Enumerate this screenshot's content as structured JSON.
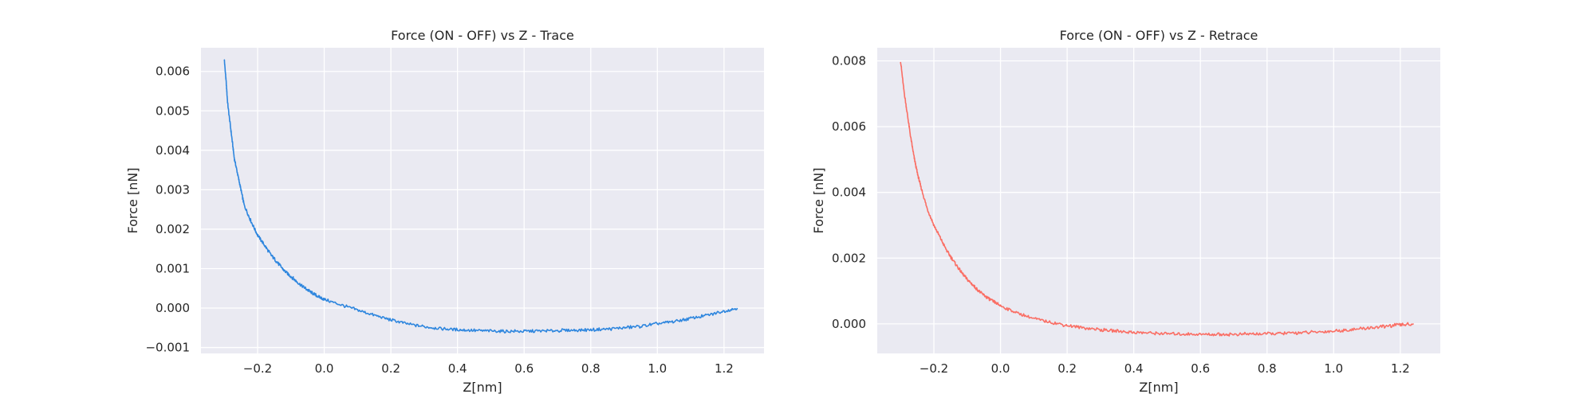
{
  "chart_data": [
    {
      "type": "line",
      "title": "Force (ON - OFF) vs Z - Trace",
      "xlabel": "Z[nm]",
      "ylabel": "Force [nN]",
      "xlim": [
        -0.37,
        1.32
      ],
      "ylim": [
        -0.00115,
        0.0066
      ],
      "xticks": [
        -0.2,
        0.0,
        0.2,
        0.4,
        0.6,
        0.8,
        1.0,
        1.2
      ],
      "xtick_labels": [
        "−0.2",
        "0.0",
        "0.2",
        "0.4",
        "0.6",
        "0.8",
        "1.0",
        "1.2"
      ],
      "yticks": [
        -0.001,
        0.0,
        0.001,
        0.002,
        0.003,
        0.004,
        0.005,
        0.006
      ],
      "ytick_labels": [
        "−0.001",
        "0.000",
        "0.001",
        "0.002",
        "0.003",
        "0.004",
        "0.005",
        "0.006"
      ],
      "grid": true,
      "series": [
        {
          "color": "#2e86de",
          "x": [
            -0.3,
            -0.295,
            -0.29,
            -0.28,
            -0.27,
            -0.26,
            -0.25,
            -0.24,
            -0.22,
            -0.2,
            -0.18,
            -0.16,
            -0.14,
            -0.12,
            -0.1,
            -0.08,
            -0.06,
            -0.04,
            -0.02,
            0.0,
            0.05,
            0.1,
            0.15,
            0.2,
            0.25,
            0.3,
            0.35,
            0.4,
            0.45,
            0.5,
            0.55,
            0.6,
            0.65,
            0.7,
            0.75,
            0.8,
            0.85,
            0.9,
            0.95,
            1.0,
            1.05,
            1.1,
            1.15,
            1.2,
            1.24
          ],
          "y": [
            0.0063,
            0.0058,
            0.0052,
            0.0045,
            0.0038,
            0.0034,
            0.003,
            0.0026,
            0.0022,
            0.00185,
            0.0016,
            0.00135,
            0.00115,
            0.00095,
            0.0008,
            0.00065,
            0.00052,
            0.0004,
            0.0003,
            0.00022,
            8e-05,
            -5e-05,
            -0.00018,
            -0.0003,
            -0.0004,
            -0.00047,
            -0.00052,
            -0.00055,
            -0.00057,
            -0.00058,
            -0.00059,
            -0.00059,
            -0.00058,
            -0.00057,
            -0.00056,
            -0.00055,
            -0.00053,
            -0.0005,
            -0.00046,
            -0.0004,
            -0.00034,
            -0.00026,
            -0.00018,
            -8e-05,
            0.0
          ]
        }
      ]
    },
    {
      "type": "line",
      "title": "Force (ON - OFF) vs Z - Retrace",
      "xlabel": "Z[nm]",
      "ylabel": "Force [nN]",
      "xlim": [
        -0.37,
        1.32
      ],
      "ylim": [
        -0.0009,
        0.0084
      ],
      "xticks": [
        -0.2,
        0.0,
        0.2,
        0.4,
        0.6,
        0.8,
        1.0,
        1.2
      ],
      "xtick_labels": [
        "−0.2",
        "0.0",
        "0.2",
        "0.4",
        "0.6",
        "0.8",
        "1.0",
        "1.2"
      ],
      "yticks": [
        0.0,
        0.002,
        0.004,
        0.006,
        0.008
      ],
      "ytick_labels": [
        "0.000",
        "0.002",
        "0.004",
        "0.006",
        "0.008"
      ],
      "grid": true,
      "series": [
        {
          "color": "#fa6e64",
          "x": [
            -0.3,
            -0.29,
            -0.28,
            -0.27,
            -0.26,
            -0.25,
            -0.24,
            -0.22,
            -0.2,
            -0.18,
            -0.16,
            -0.14,
            -0.12,
            -0.1,
            -0.08,
            -0.06,
            -0.04,
            -0.02,
            0.0,
            0.05,
            0.1,
            0.15,
            0.2,
            0.25,
            0.3,
            0.35,
            0.4,
            0.45,
            0.5,
            0.55,
            0.6,
            0.65,
            0.7,
            0.75,
            0.8,
            0.85,
            0.9,
            0.95,
            1.0,
            1.05,
            1.1,
            1.15,
            1.2,
            1.24
          ],
          "y": [
            0.008,
            0.0071,
            0.0064,
            0.0057,
            0.0051,
            0.0046,
            0.0042,
            0.0035,
            0.003,
            0.0026,
            0.0022,
            0.0019,
            0.0016,
            0.00135,
            0.00115,
            0.00095,
            0.0008,
            0.00067,
            0.00055,
            0.00033,
            0.00016,
            5e-05,
            -5e-05,
            -0.00012,
            -0.00018,
            -0.00022,
            -0.00026,
            -0.00028,
            -0.0003,
            -0.00031,
            -0.00032,
            -0.00032,
            -0.00032,
            -0.00031,
            -0.0003,
            -0.00029,
            -0.00027,
            -0.00025,
            -0.00022,
            -0.00018,
            -0.00013,
            -8e-05,
            -3e-05,
            0.0
          ]
        }
      ]
    }
  ]
}
